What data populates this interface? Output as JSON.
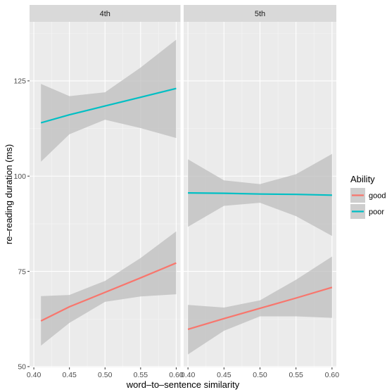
{
  "chart_data": {
    "type": "line",
    "xlabel": "word–to–sentence similarity",
    "ylabel": "re–reading duration (ms)",
    "x_ticks": [
      0.4,
      0.45,
      0.5,
      0.55,
      0.6
    ],
    "x_tick_labels": [
      "0.40",
      "0.45",
      "0.50",
      "0.55",
      "0.60"
    ],
    "y_ticks": [
      50,
      75,
      100,
      125
    ],
    "y_tick_labels": [
      "50",
      "75",
      "100",
      "125"
    ],
    "xlim": [
      0.394,
      0.606
    ],
    "ylim": [
      49.8,
      140.5
    ],
    "grid": true,
    "legend": {
      "title": "Ability",
      "position": "right",
      "entries": [
        {
          "label": "good",
          "color": "#F8766D"
        },
        {
          "label": "poor",
          "color": "#00BFC4"
        }
      ]
    },
    "colors": {
      "panel_bg": "#EBEBEB",
      "strip_bg": "#D9D9D9",
      "ribbon": "#BDBDBD",
      "grid": "#FFFFFF"
    },
    "panels": [
      {
        "title": "4th",
        "series": [
          {
            "name": "good",
            "color": "#F8766D",
            "x": [
              0.41,
              0.45,
              0.5,
              0.55,
              0.6
            ],
            "fit": [
              62.0,
              65.7,
              69.5,
              73.3,
              77.2
            ],
            "lower": [
              55.5,
              61.5,
              67.0,
              68.4,
              69.0
            ],
            "upper": [
              68.5,
              68.8,
              72.5,
              78.5,
              85.5
            ]
          },
          {
            "name": "poor",
            "color": "#00BFC4",
            "x": [
              0.41,
              0.45,
              0.5,
              0.55,
              0.6
            ],
            "fit": [
              114.0,
              116.1,
              118.4,
              120.7,
              123.0
            ],
            "lower": [
              103.8,
              111.0,
              114.8,
              112.6,
              110.0
            ],
            "upper": [
              124.2,
              121.0,
              122.0,
              128.5,
              135.8
            ]
          }
        ]
      },
      {
        "title": "5th",
        "series": [
          {
            "name": "good",
            "color": "#F8766D",
            "x": [
              0.4,
              0.45,
              0.5,
              0.55,
              0.6
            ],
            "fit": [
              59.8,
              62.6,
              65.3,
              68.0,
              70.8
            ],
            "lower": [
              53.2,
              59.4,
              63.2,
              63.2,
              62.8
            ],
            "upper": [
              66.2,
              65.5,
              67.4,
              72.8,
              78.9
            ]
          },
          {
            "name": "poor",
            "color": "#00BFC4",
            "x": [
              0.4,
              0.45,
              0.5,
              0.55,
              0.6
            ],
            "fit": [
              95.6,
              95.5,
              95.3,
              95.2,
              95.0
            ],
            "lower": [
              86.7,
              92.2,
              93.0,
              89.5,
              84.3
            ],
            "upper": [
              104.4,
              98.9,
              97.9,
              100.5,
              105.8
            ]
          }
        ]
      }
    ]
  }
}
